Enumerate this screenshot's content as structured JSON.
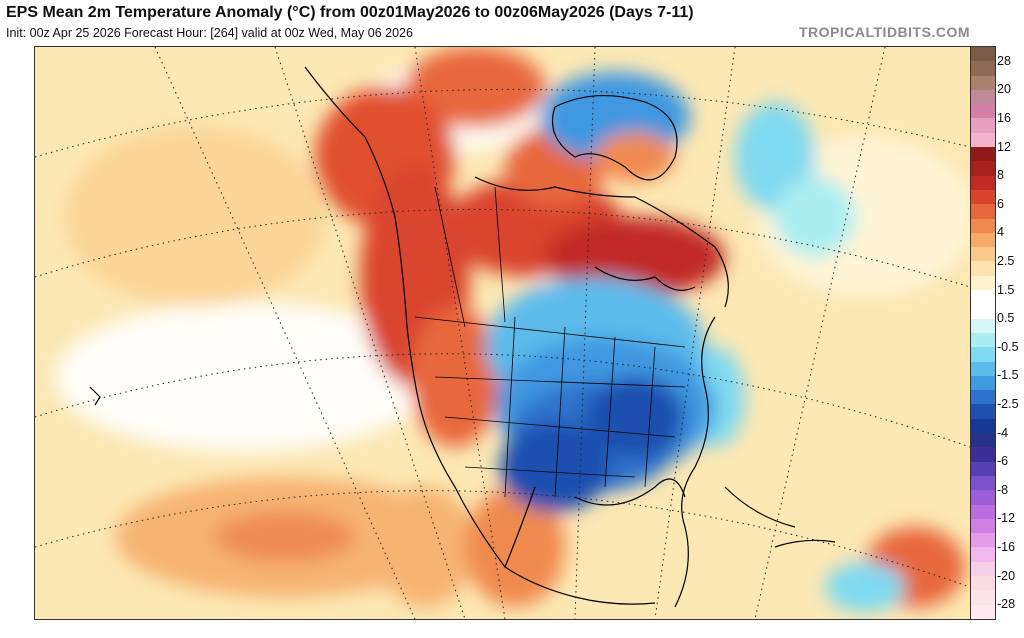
{
  "header": {
    "title": "EPS Mean 2m Temperature Anomaly (°C) from 00z01May2026 to 00z06May2026 (Days 7-11)",
    "subtitle": "Init: 00z Apr 25 2026   Forecast Hour: [264]   valid at 00z Wed, May 06 2026",
    "brand": "TROPICALTIDBITS.COM"
  },
  "colorbar": {
    "labels": [
      "28",
      "20",
      "16",
      "12",
      "8",
      "6",
      "4",
      "2.5",
      "1.5",
      "0.5",
      "-0.5",
      "-1.5",
      "-2.5",
      "-4",
      "-6",
      "-8",
      "-12",
      "-16",
      "-20",
      "-28"
    ],
    "colors": [
      "#7a5a48",
      "#8c6a56",
      "#a88470",
      "#c08a9c",
      "#d47fa8",
      "#e8a0c2",
      "#f2b4cc",
      "#8e1a1a",
      "#a81f1f",
      "#c12b26",
      "#d9442f",
      "#e8673e",
      "#f08a50",
      "#f6ab68",
      "#fac98a",
      "#fde4ae",
      "#fff3cf",
      "#ffffff",
      "#ffffff",
      "#d6f6f8",
      "#aaeef2",
      "#7fd9f0",
      "#5bbbeb",
      "#3f98e0",
      "#2d72cc",
      "#1f50b0",
      "#163a94",
      "#27328a",
      "#3b2f96",
      "#5540b2",
      "#7a52cc",
      "#9a5ed6",
      "#b86ee0",
      "#d07fe4",
      "#e39bea",
      "#f0b8ee",
      "#f6cfe8",
      "#f9dbe3",
      "#fbe4e8",
      "#fde9ee"
    ]
  }
}
